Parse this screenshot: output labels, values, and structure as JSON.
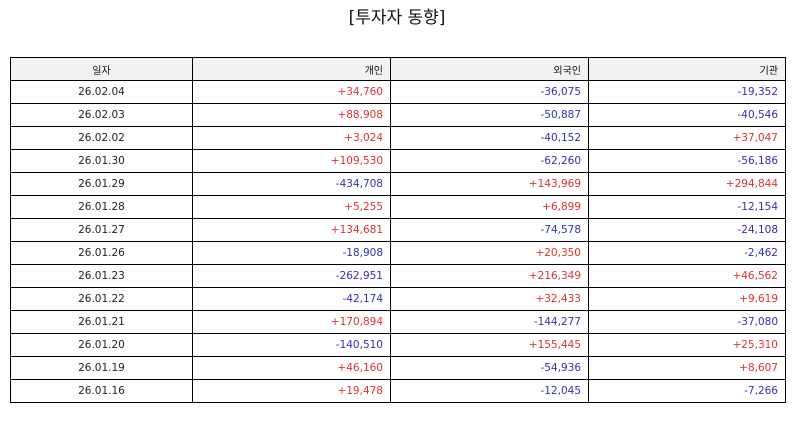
{
  "title": "[투자자 동향]",
  "colors": {
    "positive": "#e03030",
    "negative": "#3030b8",
    "header_bg": "#f2f2f2"
  },
  "columns": [
    "일자",
    "개인",
    "외국인",
    "기관"
  ],
  "rows": [
    [
      "26.02.04",
      "+34,760",
      "-36,075",
      "-19,352"
    ],
    [
      "26.02.03",
      "+88,908",
      "-50,887",
      "-40,546"
    ],
    [
      "26.02.02",
      "+3,024",
      "-40,152",
      "+37,047"
    ],
    [
      "26.01.30",
      "+109,530",
      "-62,260",
      "-56,186"
    ],
    [
      "26.01.29",
      "-434,708",
      "+143,969",
      "+294,844"
    ],
    [
      "26.01.28",
      "+5,255",
      "+6,899",
      "-12,154"
    ],
    [
      "26.01.27",
      "+134,681",
      "-74,578",
      "-24,108"
    ],
    [
      "26.01.26",
      "-18,908",
      "+20,350",
      "-2,462"
    ],
    [
      "26.01.23",
      "-262,951",
      "+216,349",
      "+46,562"
    ],
    [
      "26.01.22",
      "-42,174",
      "+32,433",
      "+9,619"
    ],
    [
      "26.01.21",
      "+170,894",
      "-144,277",
      "-37,080"
    ],
    [
      "26.01.20",
      "-140,510",
      "+155,445",
      "+25,310"
    ],
    [
      "26.01.19",
      "+46,160",
      "-54,936",
      "+8,607"
    ],
    [
      "26.01.16",
      "+19,478",
      "-12,045",
      "-7,266"
    ]
  ]
}
